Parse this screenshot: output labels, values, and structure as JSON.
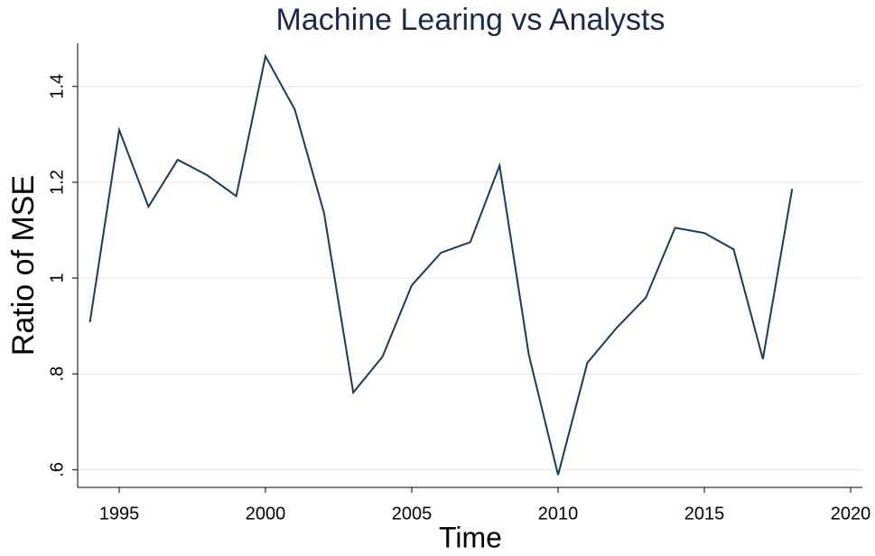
{
  "chart_data": {
    "type": "line",
    "title": "Machine Learing vs Analysts",
    "x_label": "Time",
    "y_label": "Ratio of MSE",
    "x": [
      1994,
      1995,
      1996,
      1997,
      1998,
      1999,
      2000,
      2001,
      2002,
      2003,
      2004,
      2005,
      2006,
      2007,
      2008,
      2009,
      2010,
      2011,
      2012,
      2013,
      2014,
      2015,
      2016,
      2017,
      2018
    ],
    "series": [
      {
        "name": "Ratio of MSE",
        "color": "#1a3a5c",
        "values": [
          0.908,
          1.309,
          1.149,
          1.247,
          1.215,
          1.171,
          1.463,
          1.352,
          1.136,
          0.761,
          0.836,
          0.985,
          1.053,
          1.075,
          1.235,
          0.84,
          0.589,
          0.823,
          0.896,
          0.959,
          1.105,
          1.094,
          1.06,
          0.831,
          1.186
        ]
      }
    ],
    "xlim": [
      1993.58,
      2020.4
    ],
    "xticks": [
      1995,
      2000,
      2005,
      2010,
      2015,
      2020
    ],
    "ylim": [
      0.563,
      1.49
    ],
    "yticks": [
      {
        "value": 0.6,
        "label": ".6"
      },
      {
        "value": 0.8,
        "label": ".8"
      },
      1,
      1.2,
      1.4
    ],
    "grid": true
  }
}
